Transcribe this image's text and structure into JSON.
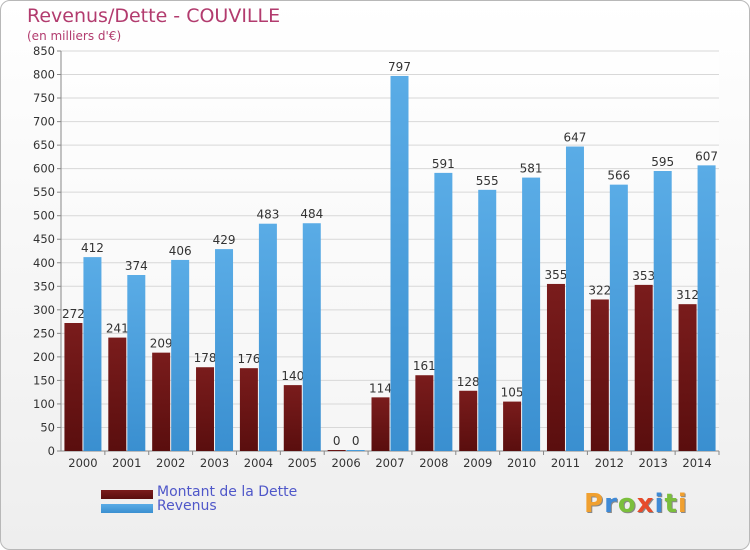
{
  "title": "Revenus/Dette - COUVILLE",
  "subtitle": "(en milliers d'€)",
  "logo": {
    "text": "Proxiti",
    "letters": [
      {
        "ch": "P",
        "color": "#f0a030"
      },
      {
        "ch": "r",
        "color": "#3f8ad6"
      },
      {
        "ch": "o",
        "color": "#7bbf3c"
      },
      {
        "ch": "x",
        "color": "#e64b2b"
      },
      {
        "ch": "i",
        "color": "#3f8ad6"
      },
      {
        "ch": "t",
        "color": "#7bbf3c"
      },
      {
        "ch": "i",
        "color": "#f0a030"
      }
    ]
  },
  "colors": {
    "debt": "#7a1c1c",
    "debt_dark": "#5a0e0e",
    "revenue": "#5aace6",
    "revenue_dark": "#3a8fd0",
    "title": "#b23b6e",
    "legend_text": "#4f57c9"
  },
  "chart_data": {
    "type": "bar",
    "title": "Revenus/Dette - COUVILLE",
    "subtitle": "(en milliers d'€)",
    "categories": [
      "2000",
      "2001",
      "2002",
      "2003",
      "2004",
      "2005",
      "2006",
      "2007",
      "2008",
      "2009",
      "2010",
      "2011",
      "2012",
      "2013",
      "2014"
    ],
    "series": [
      {
        "name": "Montant de la Dette",
        "values": [
          272,
          241,
          209,
          178,
          176,
          140,
          0,
          114,
          161,
          128,
          105,
          355,
          322,
          353,
          312
        ]
      },
      {
        "name": "Revenus",
        "values": [
          412,
          374,
          406,
          429,
          483,
          484,
          0,
          797,
          591,
          555,
          581,
          647,
          566,
          595,
          607
        ]
      }
    ],
    "ylim": [
      0,
      850
    ],
    "ytick_step": 50,
    "grid": true,
    "legend_position": "bottom-left"
  }
}
